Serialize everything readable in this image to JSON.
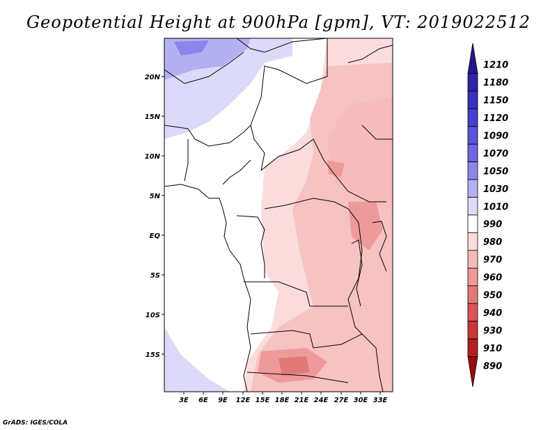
{
  "title": "Geopotential Height at 900hPa [gpm], VT: 2019022512",
  "credit": "GrADS: IGES/COLA",
  "map": {
    "lat_labels": [
      "20N",
      "15N",
      "10N",
      "5N",
      "EQ",
      "5S",
      "10S",
      "15S"
    ],
    "lon_labels": [
      "3E",
      "6E",
      "9E",
      "12E",
      "15E",
      "18E",
      "21E",
      "24E",
      "27E",
      "30E",
      "33E"
    ]
  },
  "colorbar": {
    "levels": [
      "1210",
      "1180",
      "1150",
      "1120",
      "1090",
      "1070",
      "1050",
      "1030",
      "1010",
      "990",
      "980",
      "970",
      "960",
      "950",
      "940",
      "930",
      "910",
      "890"
    ],
    "colors": [
      "#26168c",
      "#2f22a6",
      "#3a30bc",
      "#4840cc",
      "#5a52d8",
      "#6e66e0",
      "#8c86ea",
      "#b4b0f2",
      "#dcdaf8",
      "#ffffff",
      "#fbdcdc",
      "#f6bcbc",
      "#ee9a9a",
      "#e47878",
      "#d85656",
      "#c83838",
      "#b41e1e",
      "#9a0c0c"
    ]
  }
}
